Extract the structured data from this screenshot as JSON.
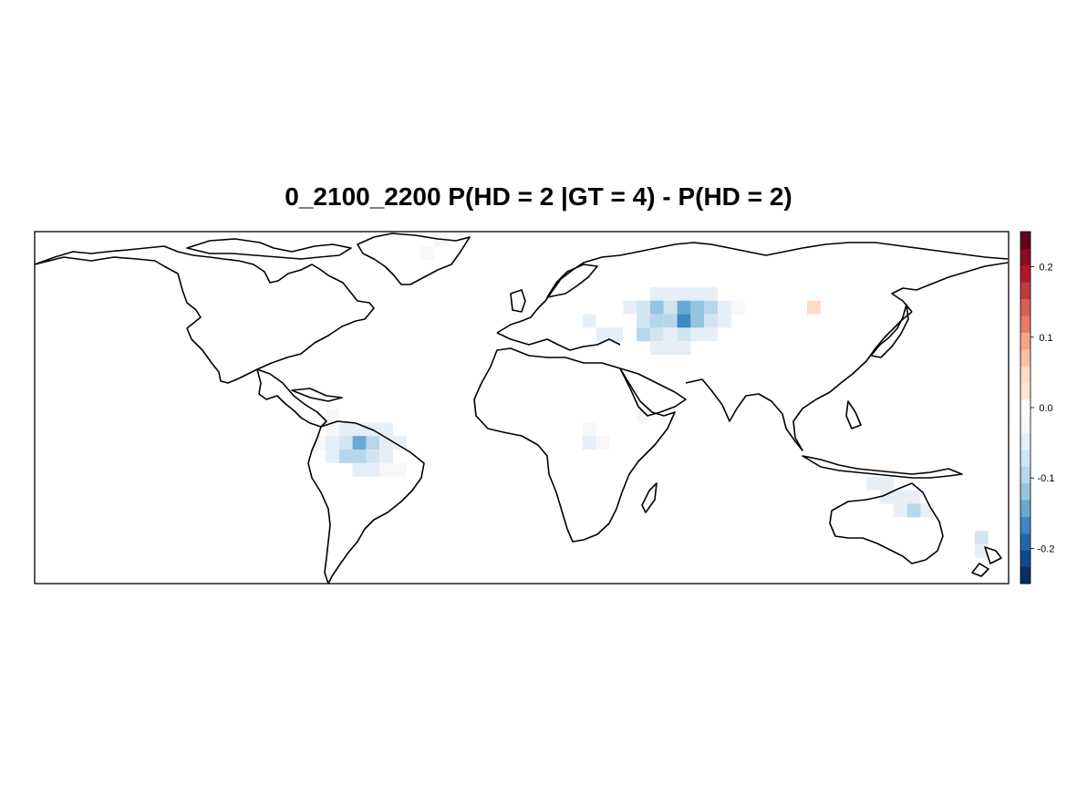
{
  "title": "0_2100_2200 P(HD = 2 |GT = 4) - P(HD = 2)",
  "colorbar": {
    "ticks": [
      {
        "value": 0.2,
        "label": "0.2"
      },
      {
        "value": 0.1,
        "label": "0.1"
      },
      {
        "value": 0.0,
        "label": "0.0"
      },
      {
        "value": -0.1,
        "label": "-0.1"
      },
      {
        "value": -0.2,
        "label": "-0.2"
      }
    ],
    "min": -0.25,
    "max": 0.25,
    "colors": [
      "#053061",
      "#0f4a8a",
      "#2166ac",
      "#3e88c1",
      "#6aa8d1",
      "#94c4df",
      "#b7d6ea",
      "#d1e5f0",
      "#e6eff7",
      "#f7f7f7",
      "#ffffff",
      "#fbe5d8",
      "#fddbc7",
      "#f9bfa3",
      "#f4a582",
      "#e57c64",
      "#d6604d",
      "#c13b3c",
      "#b2182b",
      "#8a0b24",
      "#67001f"
    ]
  },
  "map_data": {
    "type": "heatmap-map",
    "lon_range": [
      -180,
      180
    ],
    "lat_range": [
      -60,
      70
    ],
    "cells": [
      {
        "lon": -30,
        "lat": 67,
        "value": -0.03
      },
      {
        "lon": -35,
        "lat": 62,
        "value": -0.03
      },
      {
        "lon": 25,
        "lat": 37,
        "value": -0.05
      },
      {
        "lon": 30,
        "lat": 32,
        "value": -0.05
      },
      {
        "lon": 35,
        "lat": 32,
        "value": -0.05
      },
      {
        "lon": 40,
        "lat": 42,
        "value": -0.05
      },
      {
        "lon": 45,
        "lat": 42,
        "value": -0.08
      },
      {
        "lon": 45,
        "lat": 37,
        "value": -0.08
      },
      {
        "lon": 45,
        "lat": 32,
        "value": -0.1
      },
      {
        "lon": 50,
        "lat": 47,
        "value": -0.05
      },
      {
        "lon": 50,
        "lat": 42,
        "value": -0.12
      },
      {
        "lon": 50,
        "lat": 37,
        "value": -0.1
      },
      {
        "lon": 50,
        "lat": 32,
        "value": -0.08
      },
      {
        "lon": 50,
        "lat": 27,
        "value": -0.05
      },
      {
        "lon": 55,
        "lat": 47,
        "value": -0.05
      },
      {
        "lon": 55,
        "lat": 42,
        "value": -0.08
      },
      {
        "lon": 55,
        "lat": 37,
        "value": -0.1
      },
      {
        "lon": 55,
        "lat": 32,
        "value": -0.05
      },
      {
        "lon": 55,
        "lat": 27,
        "value": -0.05
      },
      {
        "lon": 60,
        "lat": 47,
        "value": -0.05
      },
      {
        "lon": 60,
        "lat": 42,
        "value": -0.15
      },
      {
        "lon": 60,
        "lat": 37,
        "value": -0.17
      },
      {
        "lon": 60,
        "lat": 32,
        "value": -0.08
      },
      {
        "lon": 60,
        "lat": 27,
        "value": -0.05
      },
      {
        "lon": 65,
        "lat": 47,
        "value": -0.05
      },
      {
        "lon": 65,
        "lat": 42,
        "value": -0.12
      },
      {
        "lon": 65,
        "lat": 37,
        "value": -0.12
      },
      {
        "lon": 65,
        "lat": 32,
        "value": -0.05
      },
      {
        "lon": 70,
        "lat": 47,
        "value": -0.05
      },
      {
        "lon": 70,
        "lat": 42,
        "value": -0.1
      },
      {
        "lon": 70,
        "lat": 37,
        "value": -0.08
      },
      {
        "lon": 70,
        "lat": 32,
        "value": -0.05
      },
      {
        "lon": 75,
        "lat": 42,
        "value": -0.05
      },
      {
        "lon": 75,
        "lat": 37,
        "value": -0.05
      },
      {
        "lon": 80,
        "lat": 42,
        "value": -0.03
      },
      {
        "lon": 108,
        "lat": 42,
        "value": 0.05
      },
      {
        "lon": 45,
        "lat": 2,
        "value": -0.03
      },
      {
        "lon": 25,
        "lat": -3,
        "value": -0.03
      },
      {
        "lon": 25,
        "lat": -8,
        "value": -0.05
      },
      {
        "lon": 30,
        "lat": -8,
        "value": -0.03
      },
      {
        "lon": -70,
        "lat": 2,
        "value": -0.03
      },
      {
        "lon": -70,
        "lat": -3,
        "value": -0.03
      },
      {
        "lon": -65,
        "lat": -3,
        "value": -0.05
      },
      {
        "lon": -60,
        "lat": -3,
        "value": -0.05
      },
      {
        "lon": -55,
        "lat": -3,
        "value": -0.05
      },
      {
        "lon": -50,
        "lat": -3,
        "value": -0.05
      },
      {
        "lon": -75,
        "lat": -8,
        "value": -0.03
      },
      {
        "lon": -70,
        "lat": -8,
        "value": -0.05
      },
      {
        "lon": -65,
        "lat": -8,
        "value": -0.08
      },
      {
        "lon": -60,
        "lat": -8,
        "value": -0.15
      },
      {
        "lon": -55,
        "lat": -8,
        "value": -0.1
      },
      {
        "lon": -50,
        "lat": -8,
        "value": -0.05
      },
      {
        "lon": -45,
        "lat": -8,
        "value": -0.05
      },
      {
        "lon": -70,
        "lat": -13,
        "value": -0.05
      },
      {
        "lon": -65,
        "lat": -13,
        "value": -0.1
      },
      {
        "lon": -60,
        "lat": -13,
        "value": -0.1
      },
      {
        "lon": -55,
        "lat": -13,
        "value": -0.08
      },
      {
        "lon": -50,
        "lat": -13,
        "value": -0.05
      },
      {
        "lon": -60,
        "lat": -18,
        "value": -0.05
      },
      {
        "lon": -55,
        "lat": -18,
        "value": -0.05
      },
      {
        "lon": -50,
        "lat": -18,
        "value": -0.03
      },
      {
        "lon": -45,
        "lat": -18,
        "value": -0.03
      },
      {
        "lon": 130,
        "lat": -23,
        "value": -0.05
      },
      {
        "lon": 135,
        "lat": -23,
        "value": -0.05
      },
      {
        "lon": 135,
        "lat": -28,
        "value": -0.05
      },
      {
        "lon": 140,
        "lat": -28,
        "value": -0.05
      },
      {
        "lon": 145,
        "lat": -28,
        "value": -0.05
      },
      {
        "lon": 140,
        "lat": -33,
        "value": -0.05
      },
      {
        "lon": 145,
        "lat": -33,
        "value": -0.1
      },
      {
        "lon": 150,
        "lat": -33,
        "value": -0.05
      },
      {
        "lon": 170,
        "lat": -43,
        "value": -0.08
      },
      {
        "lon": 170,
        "lat": -48,
        "value": -0.05
      }
    ]
  }
}
